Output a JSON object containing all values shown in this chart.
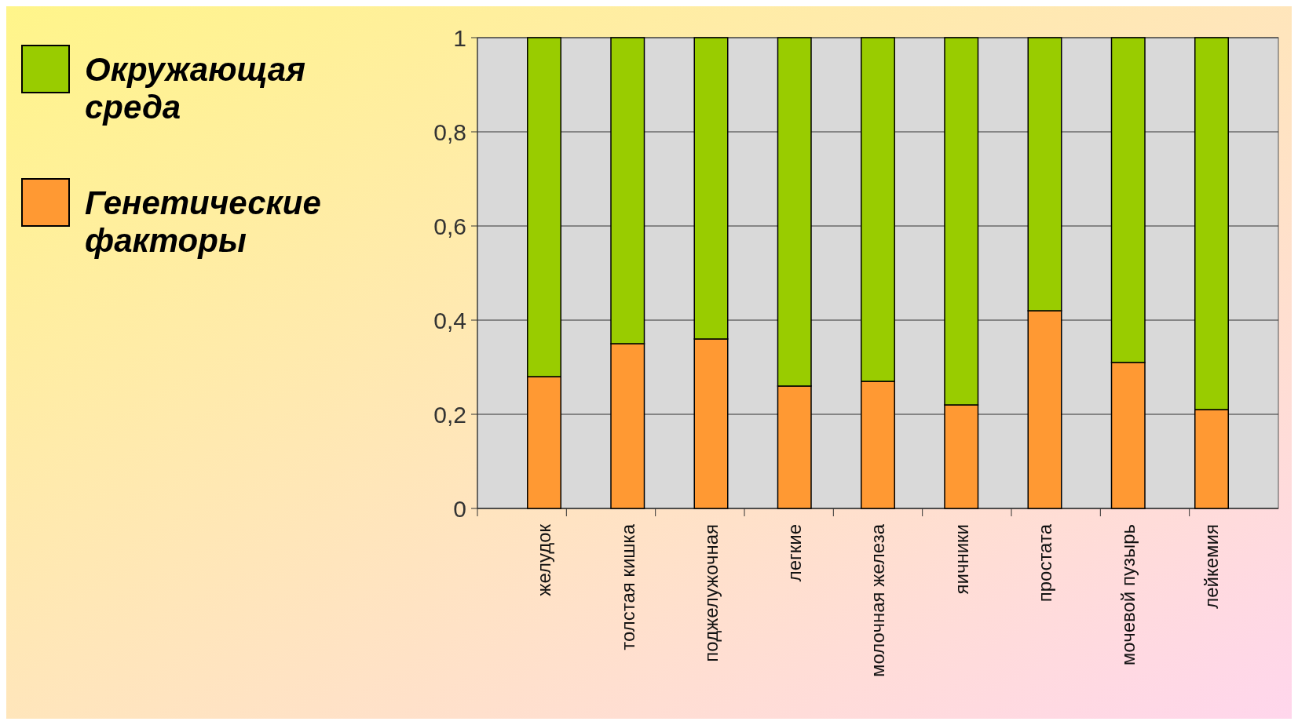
{
  "chart_data": {
    "type": "bar",
    "stacked": true,
    "categories": [
      "желудок",
      "толстая кишка",
      "поджелужочная",
      "легкие",
      "молочная железа",
      "яичники",
      "простата",
      "мочевой пузырь",
      "лейкемия"
    ],
    "series": [
      {
        "name": "Генетические факторы",
        "color": "#ff9933",
        "values": [
          0.28,
          0.35,
          0.36,
          0.26,
          0.27,
          0.22,
          0.42,
          0.31,
          0.21
        ]
      },
      {
        "name": "Окружающая среда",
        "color": "#99cc00",
        "values": [
          0.72,
          0.65,
          0.64,
          0.74,
          0.73,
          0.78,
          0.58,
          0.69,
          0.79
        ]
      }
    ],
    "ylim": [
      0,
      1
    ],
    "yticks": [
      0,
      {
        "value": 0.2,
        "label": "0,2"
      },
      {
        "value": 0.4,
        "label": "0,4"
      },
      {
        "value": 0.6,
        "label": "0,6"
      },
      {
        "value": 0.8,
        "label": "0,8"
      },
      1
    ],
    "grid": "y",
    "legend": "top left"
  }
}
